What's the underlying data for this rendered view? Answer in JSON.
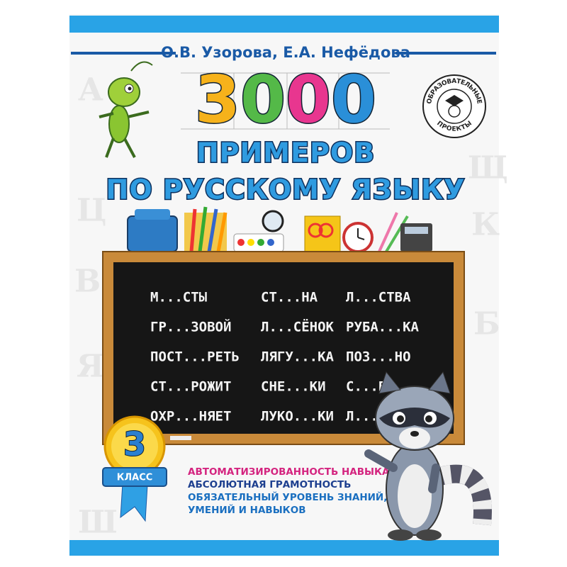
{
  "authors": "О.В. Узорова, Е.А. Нефёдова",
  "title": {
    "number": "3000",
    "line1": "ПРИМЕРОВ",
    "line2": "ПО РУССКОМУ ЯЗЫКУ"
  },
  "publisher_badge": {
    "top": "ОБРАЗОВАТЕЛЬНЫЕ",
    "bottom": "ПРОЕКТЫ"
  },
  "chalkboard": {
    "columns": [
      [
        "М...СТЫ",
        "ГР...ЗОВОЙ",
        "ПОСТ...РЕТЬ",
        "СТ...РОЖИТ",
        "ОХР...НЯЕТ"
      ],
      [
        "СТ...НА",
        "Л...СЁНОК",
        "ЛЯГУ...КА",
        "СНЕ...КИ",
        "ЛУКО...КИ"
      ],
      [
        "Л...СТВА",
        "РУБА...КА",
        "ПОЗ...НО",
        "С...БА",
        "Л...П"
      ]
    ]
  },
  "grade": {
    "number": "3",
    "label": "КЛАСС"
  },
  "features": [
    "АВТОМАТИЗИРОВАННОСТЬ НАВЫКА",
    "АБСОЛЮТНАЯ ГРАМОТНОСТЬ",
    "ОБЯЗАТЕЛЬНЫЙ УРОВЕНЬ ЗНАНИЙ,",
    "УМЕНИЙ И НАВЫКОВ"
  ]
}
